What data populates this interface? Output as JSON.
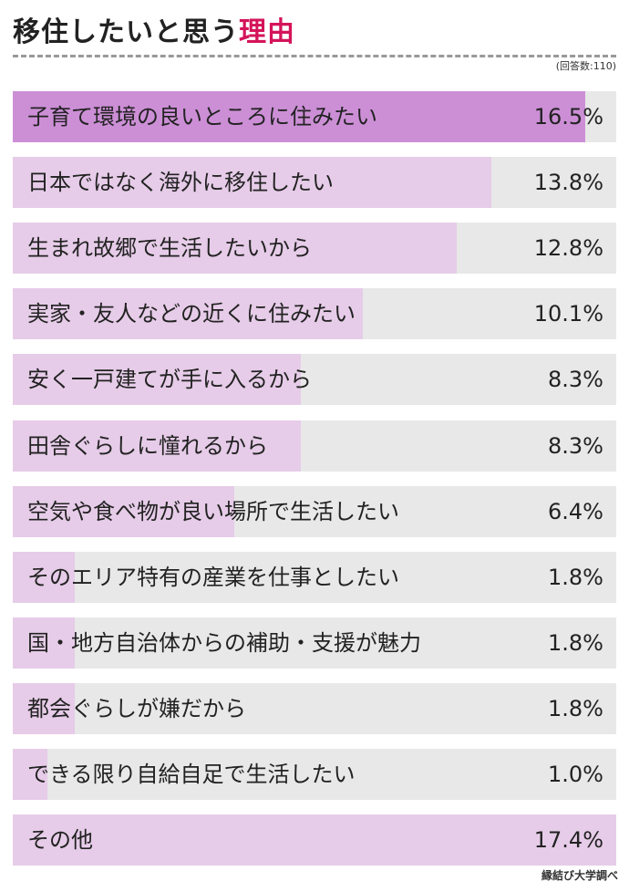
{
  "title": {
    "main": "移住したいと思う",
    "accent": "理由"
  },
  "note": "(回答数:110)",
  "source": "縁結び大学調べ",
  "colors": {
    "accent": "#d4145a",
    "top_bar": "#cc8fd6",
    "bar": "#e6cce8",
    "track": "#e8e8e8"
  },
  "chart_data": {
    "type": "bar",
    "orientation": "horizontal",
    "xlim": [
      0,
      17.4
    ],
    "categories": [
      "子育て環境の良いところに住みたい",
      "日本ではなく海外に移住したい",
      "生まれ故郷で生活したいから",
      "実家・友人などの近くに住みたい",
      "安く一戸建てが手に入るから",
      "田舎ぐらしに憧れるから",
      "空気や食べ物が良い場所で生活したい",
      "そのエリア特有の産業を仕事としたい",
      "国・地方自治体からの補助・支援が魅力",
      "都会ぐらしが嫌だから",
      "できる限り自給自足で生活したい",
      "その他"
    ],
    "values": [
      16.5,
      13.8,
      12.8,
      10.1,
      8.3,
      8.3,
      6.4,
      1.8,
      1.8,
      1.8,
      1.0,
      17.4
    ],
    "value_labels": [
      "16.5%",
      "13.8%",
      "12.8%",
      "10.1%",
      "8.3%",
      "8.3%",
      "6.4%",
      "1.8%",
      "1.8%",
      "1.8%",
      "1.0%",
      "17.4%"
    ]
  }
}
